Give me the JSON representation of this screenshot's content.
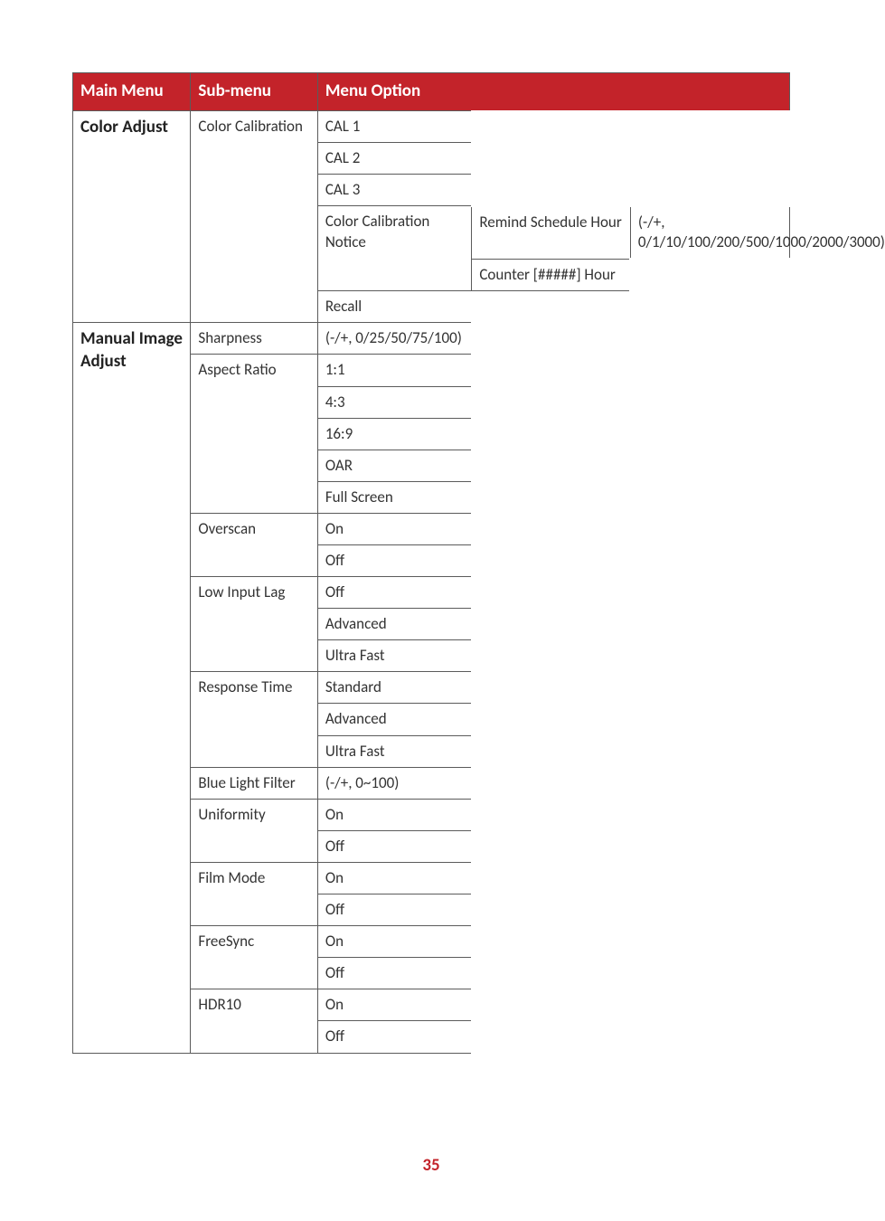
{
  "colors": {
    "header_bg": "#c3232a",
    "header_fg": "#ffffff",
    "border": "#5b5b5b",
    "text": "#333333",
    "page_num": "#c3232a"
  },
  "headers": {
    "main_menu": "Main Menu",
    "sub_menu": "Sub-menu",
    "menu_option": "Menu Option"
  },
  "color_adjust": {
    "title": "Color Adjust",
    "sub": "Color Calibration",
    "cal1": "CAL 1",
    "cal2": "CAL 2",
    "cal3": "CAL 3",
    "color_cal_notice": "Color Calibration Notice",
    "remind_schedule": "Remind Schedule Hour",
    "remind_values": "(-/+, 0/1/10/100/200/500/1000/2000/3000)",
    "counter": "Counter [#####] Hour",
    "recall": "Recall"
  },
  "manual": {
    "title": "Manual Image Adjust",
    "sharpness": {
      "label": "Sharpness",
      "values": "(-/+, 0/25/50/75/100)"
    },
    "aspect_ratio": {
      "label": "Aspect Ratio",
      "v1": "1:1",
      "v2": "4:3",
      "v3": "16:9",
      "v4": "OAR",
      "v5": "Full Screen"
    },
    "overscan": {
      "label": "Overscan",
      "on": "On",
      "off": "Off"
    },
    "low_input_lag": {
      "label": "Low Input Lag",
      "off": "Off",
      "adv": "Advanced",
      "uf": "Ultra Fast"
    },
    "response_time": {
      "label": "Response Time",
      "std": "Standard",
      "adv": "Advanced",
      "uf": "Ultra Fast"
    },
    "blue_light": {
      "label": "Blue Light Filter",
      "values": "(-/+, 0~100)"
    },
    "uniformity": {
      "label": "Uniformity",
      "on": "On",
      "off": "Off"
    },
    "film_mode": {
      "label": "Film Mode",
      "on": "On",
      "off": "Off"
    },
    "freesync": {
      "label": "FreeSync",
      "on": "On",
      "off": "Off"
    },
    "hdr10": {
      "label": "HDR10",
      "on": "On",
      "off": "Off"
    }
  },
  "page_number": "35"
}
